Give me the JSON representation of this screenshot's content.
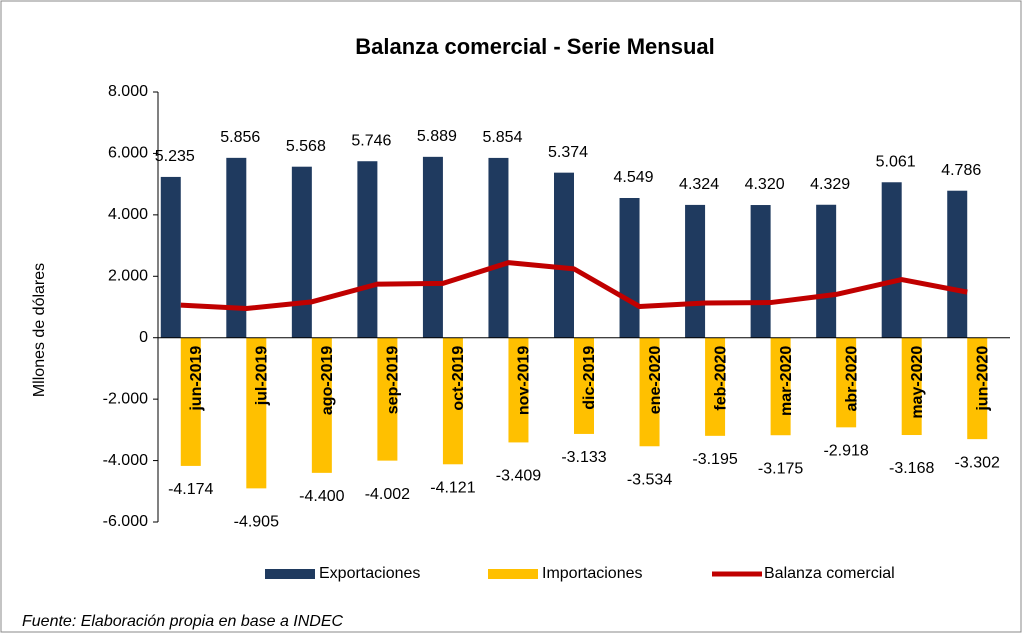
{
  "chart_data": {
    "type": "bar",
    "title": "Balanza comercial - Serie Mensual",
    "y_label": "Mllones de dólares",
    "footer": "Fuente: Elaboración propia  en base a INDEC",
    "categories": [
      "jun-2019",
      "jul-2019",
      "ago-2019",
      "sep-2019",
      "oct-2019",
      "nov-2019",
      "dic-2019",
      "ene-2020",
      "feb-2020",
      "mar-2020",
      "abr-2020",
      "may-2020",
      "jun-2020"
    ],
    "series": [
      {
        "name": "Exportaciones",
        "type": "bar",
        "color": "#1f3a5f",
        "values": [
          5235,
          5856,
          5568,
          5746,
          5889,
          5854,
          5374,
          4549,
          4324,
          4320,
          4329,
          5061,
          4786
        ],
        "value_labels": [
          "5.235",
          "5.856",
          "5.568",
          "5.746",
          "5.889",
          "5.854",
          "5.374",
          "4.549",
          "4.324",
          "4.320",
          "4.329",
          "5.061",
          "4.786"
        ]
      },
      {
        "name": "Importaciones",
        "type": "bar",
        "color": "#ffc000",
        "values": [
          -4174,
          -4905,
          -4400,
          -4002,
          -4121,
          -3409,
          -3133,
          -3534,
          -3195,
          -3175,
          -2918,
          -3168,
          -3302
        ],
        "value_labels": [
          "-4.174",
          "-4.905",
          "-4.400",
          "-4.002",
          "-4.121",
          "-3.409",
          "-3.133",
          "-3.534",
          "-3.195",
          "-3.175",
          "-2.918",
          "-3.168",
          "-3.302"
        ]
      },
      {
        "name": "Balanza comercial",
        "type": "line",
        "color": "#c00000",
        "values": [
          1061,
          951,
          1168,
          1744,
          1768,
          2445,
          2241,
          1015,
          1129,
          1145,
          1411,
          1893,
          1484
        ]
      }
    ],
    "ylim": [
      -6000,
      8000
    ],
    "yticks": [
      {
        "value": -6000,
        "label": "-6.000"
      },
      {
        "value": -4000,
        "label": "-4.000"
      },
      {
        "value": -2000,
        "label": "-2.000"
      },
      0,
      {
        "value": 2000,
        "label": "2.000"
      },
      {
        "value": 4000,
        "label": "4.000"
      },
      {
        "value": 6000,
        "label": "6.000"
      },
      {
        "value": 8000,
        "label": "8.000"
      }
    ]
  }
}
